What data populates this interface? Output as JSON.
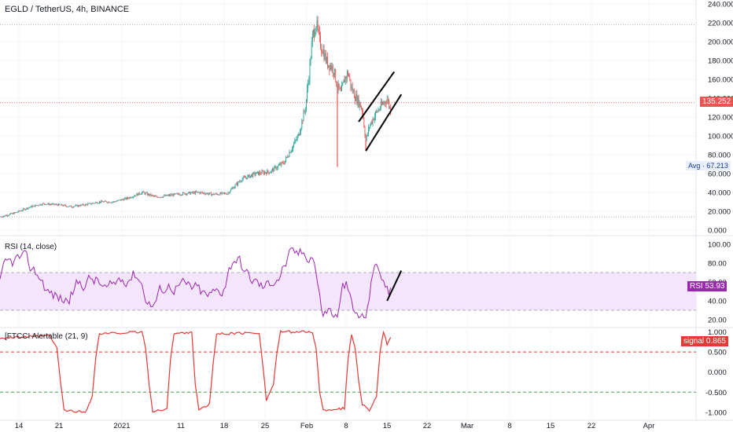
{
  "title": "EGLD / TetherUS, 4h, BINANCE",
  "price_badge": "135.252",
  "avg_label": "Avg",
  "avg_value": "67.213",
  "rsi_title": "RSI (14, close)",
  "rsi_badge_label": "RSI",
  "rsi_badge_value": "53.93",
  "fcci_title": "[FTCCI Alertable (21, 9)",
  "fcci_badge_label": "signal",
  "fcci_badge_value": "0.865",
  "colors": {
    "up": "#26a69a",
    "down": "#ef5350",
    "rsi": "#9c27b0",
    "rsi_band": "#f3e5fc",
    "signal": "#e53935",
    "green_dash": "#4caf50",
    "price_badge": "#ef5350",
    "rsi_badge": "#9c27b0"
  },
  "chart_data": [
    {
      "type": "candlestick",
      "name": "price",
      "y_ticks": [
        "240.000",
        "220.000",
        "200.000",
        "180.000",
        "160.000",
        "140.000",
        "120.000",
        "100.000",
        "80.000",
        "60.000",
        "40.000",
        "20.000",
        "0.000"
      ],
      "ylim": [
        0,
        240
      ],
      "x_ticks": [
        "14",
        "21",
        "2021",
        "11",
        "18",
        "25",
        "Feb",
        "8",
        "15",
        "22",
        "Mar",
        "8",
        "15",
        "22",
        "Apr"
      ],
      "close_path": [
        [
          0,
          14
        ],
        [
          4,
          18
        ],
        [
          8,
          24
        ],
        [
          12,
          28
        ],
        [
          16,
          27
        ],
        [
          20,
          25
        ],
        [
          24,
          27
        ],
        [
          28,
          30
        ],
        [
          32,
          30
        ],
        [
          36,
          34
        ],
        [
          40,
          40
        ],
        [
          44,
          35
        ],
        [
          48,
          37
        ],
        [
          52,
          39
        ],
        [
          56,
          40
        ],
        [
          60,
          38
        ],
        [
          64,
          39
        ],
        [
          68,
          54
        ],
        [
          72,
          60
        ],
        [
          76,
          62
        ],
        [
          80,
          72
        ],
        [
          84,
          100
        ],
        [
          86,
          130
        ],
        [
          87,
          165
        ],
        [
          88,
          205
        ],
        [
          89,
          220
        ],
        [
          90,
          200
        ],
        [
          91,
          190
        ],
        [
          92,
          178
        ],
        [
          93,
          175
        ],
        [
          94,
          170
        ],
        [
          95,
          152
        ],
        [
          96,
          145
        ],
        [
          97,
          160
        ],
        [
          98,
          167
        ],
        [
          99,
          150
        ],
        [
          100,
          142
        ],
        [
          101,
          136
        ],
        [
          102,
          128
        ],
        [
          103,
          95
        ],
        [
          104,
          110
        ],
        [
          105,
          118
        ],
        [
          106,
          125
        ],
        [
          107,
          130
        ],
        [
          108,
          135
        ],
        [
          109,
          139
        ],
        [
          110,
          127
        ]
      ],
      "wick_lows": [
        {
          "x": 95,
          "low": 67
        },
        {
          "x": 103,
          "low": 85
        }
      ],
      "avg": 67.213,
      "last": 135.252,
      "dotted_levels": [
        218,
        14
      ],
      "channel_lines": [
        [
          [
            101,
            115
          ],
          [
            111,
            168
          ]
        ],
        [
          [
            103,
            84
          ],
          [
            113,
            144
          ]
        ]
      ]
    },
    {
      "type": "line",
      "name": "RSI (14, close)",
      "y_ticks": [
        "100.00",
        "80.00",
        "60.00",
        "40.00",
        "20.00"
      ],
      "ylim": [
        15,
        105
      ],
      "band": [
        30,
        70
      ],
      "last": 53.93,
      "trend_line": [
        [
          109,
          40
        ],
        [
          113,
          72
        ]
      ]
    },
    {
      "type": "line",
      "name": "FTCCI Alertable (21, 9)",
      "y_ticks": [
        "1.000",
        "0.500",
        "0.000",
        "-0.500",
        "-1.000"
      ],
      "ylim": [
        -1.1,
        1.05
      ],
      "levels": [
        {
          "y": 0.5,
          "color": "red"
        },
        {
          "y": -0.5,
          "color": "green"
        }
      ],
      "segments": [
        [
          0,
          0.85
        ],
        [
          14,
          0.9
        ],
        [
          16,
          0.6
        ],
        [
          17,
          -0.2
        ],
        [
          18,
          -0.95
        ],
        [
          24,
          -1.0
        ],
        [
          26,
          -0.6
        ],
        [
          27,
          0.4
        ],
        [
          28,
          0.95
        ],
        [
          40,
          1.0
        ],
        [
          41,
          0.6
        ],
        [
          42,
          -0.3
        ],
        [
          43,
          -1.0
        ],
        [
          47,
          -0.9
        ],
        [
          48,
          0.3
        ],
        [
          49,
          0.95
        ],
        [
          54,
          1.0
        ],
        [
          55,
          -0.3
        ],
        [
          56,
          -0.95
        ],
        [
          59,
          -0.8
        ],
        [
          60,
          0.2
        ],
        [
          61,
          0.95
        ],
        [
          73,
          0.98
        ],
        [
          74,
          0.2
        ],
        [
          75,
          -0.7
        ],
        [
          77,
          -0.3
        ],
        [
          78,
          0.5
        ],
        [
          79,
          1.0
        ],
        [
          88,
          1.0
        ],
        [
          89,
          0.6
        ],
        [
          90,
          -0.5
        ],
        [
          91,
          -0.95
        ],
        [
          97,
          -0.9
        ],
        [
          98,
          0.3
        ],
        [
          99,
          0.95
        ],
        [
          100,
          0.6
        ],
        [
          101,
          -0.2
        ],
        [
          102,
          -0.8
        ],
        [
          104,
          -0.95
        ],
        [
          106,
          -0.6
        ],
        [
          107,
          0.5
        ],
        [
          108,
          0.98
        ],
        [
          109,
          0.7
        ],
        [
          110,
          0.87
        ]
      ],
      "last": 0.865
    }
  ]
}
